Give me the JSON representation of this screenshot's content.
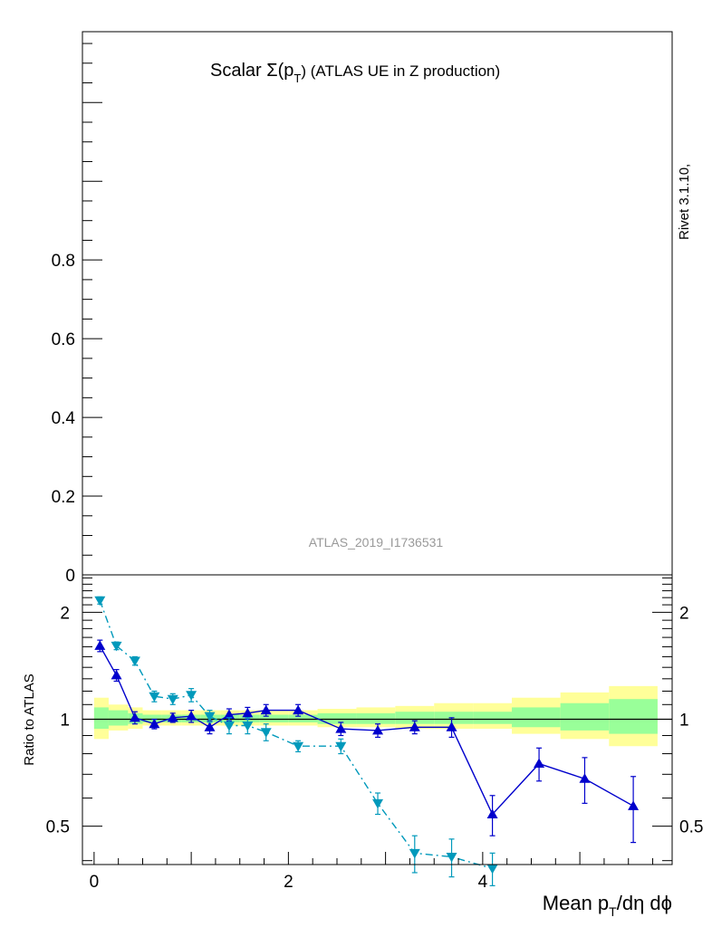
{
  "title": {
    "prefix": "Scalar Σ(p",
    "sub": "T",
    "suffix": ") (ATLAS UE in Z production)"
  },
  "side_label": "Rivet 3.1.10,",
  "watermark": "ATLAS_2019_I1736531",
  "xlabel": {
    "prefix": "Mean p",
    "sub": "T",
    "suffix": "/dη dϕ"
  },
  "ratio_ylabel": "Ratio to ATLAS",
  "colors": {
    "series_dark": "#0000cc",
    "series_light": "#0099bb",
    "band_inner": "#99ff99",
    "band_outer": "#ffff99"
  },
  "chart_data": [
    {
      "type": "line",
      "panel": "main",
      "xlim": [
        -0.12,
        5.95
      ],
      "ylim": [
        0,
        1.38
      ],
      "yticks": [
        0,
        0.2,
        0.4,
        0.6,
        0.8
      ],
      "ytick_labels": [
        "0",
        "0.2",
        "0.4",
        "0.6",
        "0.8"
      ],
      "series": []
    },
    {
      "type": "line",
      "panel": "ratio",
      "ylabel": "Ratio to ATLAS",
      "xlabel": "Mean pT/dη dϕ",
      "xlim": [
        -0.12,
        5.95
      ],
      "ylim": [
        0.39,
        2.55
      ],
      "log_y": true,
      "xticks": [
        0,
        2,
        4
      ],
      "xtick_labels": [
        "0",
        "2",
        "4"
      ],
      "yticks": [
        0.5,
        1,
        2
      ],
      "ytick_labels": [
        "0.5",
        "1",
        "2"
      ],
      "reference_line": 1,
      "bands": [
        {
          "x_edges": [
            0,
            0.15,
            0.35,
            0.5,
            0.7,
            0.9,
            1.1,
            1.3,
            1.5,
            1.7,
            2.0,
            2.3,
            2.7,
            3.1,
            3.5,
            3.9,
            4.3,
            4.8,
            5.3,
            5.8
          ],
          "outer_lo": [
            0.88,
            0.93,
            0.94,
            0.96,
            0.96,
            0.96,
            0.96,
            0.96,
            0.96,
            0.96,
            0.96,
            0.95,
            0.95,
            0.94,
            0.94,
            0.94,
            0.91,
            0.88,
            0.84
          ],
          "outer_hi": [
            1.15,
            1.1,
            1.08,
            1.06,
            1.06,
            1.06,
            1.06,
            1.06,
            1.06,
            1.06,
            1.06,
            1.07,
            1.08,
            1.09,
            1.11,
            1.11,
            1.15,
            1.19,
            1.24
          ],
          "inner_lo": [
            0.94,
            0.96,
            0.97,
            0.98,
            0.98,
            0.98,
            0.98,
            0.98,
            0.98,
            0.98,
            0.98,
            0.97,
            0.97,
            0.97,
            0.97,
            0.97,
            0.95,
            0.93,
            0.91
          ],
          "inner_hi": [
            1.08,
            1.06,
            1.04,
            1.03,
            1.03,
            1.03,
            1.03,
            1.03,
            1.03,
            1.03,
            1.03,
            1.04,
            1.04,
            1.05,
            1.05,
            1.05,
            1.08,
            1.11,
            1.14
          ]
        }
      ],
      "series": [
        {
          "marker": "triangle-up",
          "dash": "solid",
          "color": "#0000cc",
          "x": [
            0.06,
            0.23,
            0.42,
            0.62,
            0.81,
            1.0,
            1.19,
            1.39,
            1.58,
            1.77,
            2.1,
            2.54,
            2.92,
            3.3,
            3.68,
            4.1,
            4.58,
            5.05,
            5.55
          ],
          "y": [
            1.61,
            1.33,
            1.01,
            0.97,
            1.01,
            1.02,
            0.95,
            1.03,
            1.04,
            1.06,
            1.06,
            0.94,
            0.93,
            0.95,
            0.95,
            0.54,
            0.75,
            0.68,
            0.57
          ],
          "err": [
            0.06,
            0.05,
            0.04,
            0.03,
            0.03,
            0.04,
            0.04,
            0.04,
            0.04,
            0.04,
            0.04,
            0.04,
            0.04,
            0.04,
            0.06,
            0.07,
            0.08,
            0.1,
            0.12
          ]
        },
        {
          "marker": "triangle-down",
          "dash": "dash-dot",
          "color": "#0099bb",
          "x": [
            0.06,
            0.23,
            0.42,
            0.62,
            0.81,
            1.0,
            1.19,
            1.39,
            1.58,
            1.77,
            2.1,
            2.54,
            2.92,
            3.3,
            3.68,
            4.1
          ],
          "y": [
            2.16,
            1.61,
            1.46,
            1.16,
            1.14,
            1.17,
            1.02,
            0.96,
            0.96,
            0.92,
            0.84,
            0.84,
            0.58,
            0.42,
            0.41,
            0.38
          ],
          "err": [
            0.05,
            0.04,
            0.04,
            0.04,
            0.04,
            0.05,
            0.04,
            0.05,
            0.05,
            0.05,
            0.03,
            0.04,
            0.04,
            0.05,
            0.05,
            0.04
          ]
        }
      ]
    }
  ]
}
